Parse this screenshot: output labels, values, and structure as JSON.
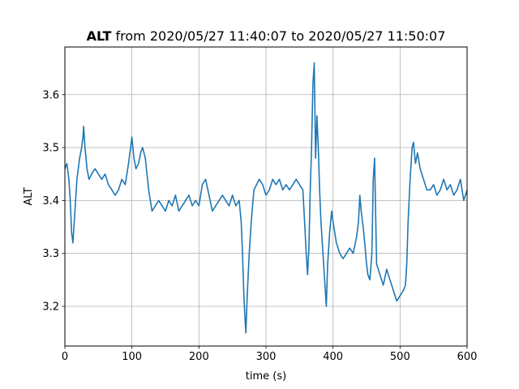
{
  "chart_data": {
    "type": "line",
    "title_bold": "ALT",
    "title_rest": " from 2020/05/27 11:40:07 to 2020/05/27 11:50:07",
    "xlabel": "time (s)",
    "ylabel": "ALT",
    "xlim": [
      0,
      600
    ],
    "ylim": [
      3.125,
      3.69
    ],
    "xticks": [
      0,
      100,
      200,
      300,
      400,
      500,
      600
    ],
    "yticks": [
      3.2,
      3.3,
      3.4,
      3.5,
      3.6
    ],
    "grid": true,
    "line_color": "#1f77b4",
    "series": [
      {
        "x": [
          0,
          3,
          6,
          8,
          10,
          12,
          15,
          18,
          20,
          22,
          25,
          27,
          28,
          30,
          33,
          36,
          40,
          45,
          50,
          55,
          60,
          65,
          70,
          75,
          80,
          85,
          90,
          95,
          98,
          100,
          103,
          106,
          110,
          113,
          116,
          120,
          125,
          130,
          135,
          140,
          145,
          150,
          155,
          160,
          165,
          170,
          175,
          180,
          185,
          190,
          195,
          200,
          205,
          210,
          215,
          220,
          225,
          230,
          235,
          240,
          245,
          250,
          255,
          260,
          263,
          265,
          267,
          269,
          270,
          272,
          275,
          278,
          282,
          286,
          290,
          295,
          300,
          305,
          310,
          315,
          320,
          325,
          330,
          335,
          340,
          345,
          350,
          355,
          358,
          360,
          362,
          364,
          366,
          368,
          370,
          372,
          374,
          376,
          378,
          380,
          382,
          385,
          388,
          390,
          392,
          395,
          398,
          400,
          405,
          410,
          415,
          420,
          425,
          430,
          435,
          438,
          440,
          442,
          445,
          448,
          450,
          452,
          455,
          458,
          460,
          462,
          465,
          470,
          475,
          480,
          485,
          490,
          495,
          500,
          505,
          508,
          510,
          512,
          515,
          518,
          520,
          523,
          526,
          530,
          535,
          540,
          545,
          550,
          555,
          560,
          565,
          570,
          575,
          580,
          585,
          590,
          595,
          600
        ],
        "y": [
          3.46,
          3.47,
          3.44,
          3.4,
          3.34,
          3.32,
          3.38,
          3.44,
          3.46,
          3.48,
          3.5,
          3.52,
          3.54,
          3.5,
          3.46,
          3.44,
          3.45,
          3.46,
          3.45,
          3.44,
          3.45,
          3.43,
          3.42,
          3.41,
          3.42,
          3.44,
          3.43,
          3.47,
          3.5,
          3.52,
          3.48,
          3.46,
          3.47,
          3.49,
          3.5,
          3.48,
          3.42,
          3.38,
          3.39,
          3.4,
          3.39,
          3.38,
          3.4,
          3.39,
          3.41,
          3.38,
          3.39,
          3.4,
          3.41,
          3.39,
          3.4,
          3.39,
          3.43,
          3.44,
          3.41,
          3.38,
          3.39,
          3.4,
          3.41,
          3.4,
          3.39,
          3.41,
          3.39,
          3.4,
          3.36,
          3.3,
          3.22,
          3.17,
          3.15,
          3.22,
          3.3,
          3.36,
          3.42,
          3.43,
          3.44,
          3.43,
          3.41,
          3.42,
          3.44,
          3.43,
          3.44,
          3.42,
          3.43,
          3.42,
          3.43,
          3.44,
          3.43,
          3.42,
          3.35,
          3.3,
          3.26,
          3.31,
          3.42,
          3.5,
          3.62,
          3.66,
          3.48,
          3.56,
          3.5,
          3.42,
          3.36,
          3.3,
          3.24,
          3.2,
          3.28,
          3.34,
          3.38,
          3.36,
          3.32,
          3.3,
          3.29,
          3.3,
          3.31,
          3.3,
          3.33,
          3.36,
          3.41,
          3.38,
          3.35,
          3.31,
          3.28,
          3.26,
          3.25,
          3.3,
          3.44,
          3.48,
          3.28,
          3.26,
          3.24,
          3.27,
          3.25,
          3.23,
          3.21,
          3.22,
          3.23,
          3.24,
          3.28,
          3.36,
          3.44,
          3.5,
          3.51,
          3.47,
          3.49,
          3.46,
          3.44,
          3.42,
          3.42,
          3.43,
          3.41,
          3.42,
          3.44,
          3.42,
          3.43,
          3.41,
          3.42,
          3.44,
          3.4,
          3.42
        ]
      }
    ]
  }
}
